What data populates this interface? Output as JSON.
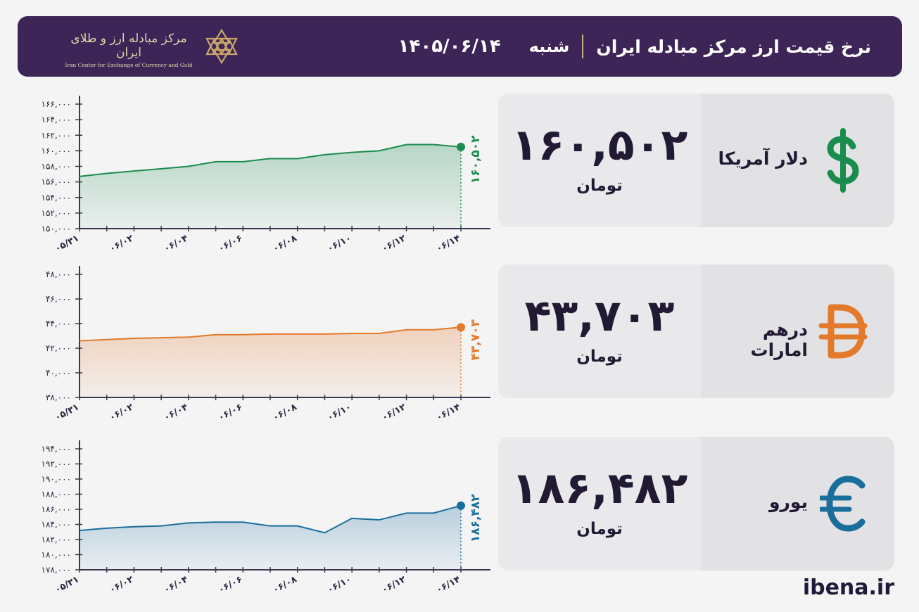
{
  "header": {
    "title": "نرخ قیمت ارز مرکز مبادله ایران",
    "day": "شنبه",
    "date": "۱۴۰۵/۰۶/۱۴",
    "logo_text_fa": "مرکز مبادله ارز و طلای ایران",
    "logo_text_en": "Iran Center for Exchange of Currency and Gold"
  },
  "footer": {
    "site": "ibena.ir"
  },
  "cards": [
    {
      "name": "دلار آمریکا",
      "value": "۱۶۰,۵۰۲",
      "unit": "تومان",
      "icon": "dollar-sign-icon",
      "color": "#1a8c4e"
    },
    {
      "name": "درهم امارات",
      "value": "۴۳,۷۰۳",
      "unit": "تومان",
      "icon": "dirham-sign-icon",
      "color": "#e3792b"
    },
    {
      "name": "یورو",
      "value": "۱۸۶,۴۸۲",
      "unit": "تومان",
      "icon": "euro-sign-icon",
      "color": "#1a6e9c"
    }
  ],
  "chart_data": [
    {
      "type": "area",
      "series": [
        {
          "values": [
            156700,
            157100,
            157400,
            157700,
            158000,
            158600,
            158600,
            159000,
            159000,
            159500,
            159800,
            160000,
            160800,
            160800,
            160502
          ]
        }
      ],
      "x": [
        "۰۵/۳۱",
        "۰۶/۰۱",
        "۰۶/۰۲",
        "۰۶/۰۳",
        "۰۶/۰۴",
        "۰۶/۰۵",
        "۰۶/۰۶",
        "۰۶/۰۷",
        "۰۶/۰۸",
        "۰۶/۰۹",
        "۰۶/۱۰",
        "۰۶/۱۱",
        "۰۶/۱۲",
        "۰۶/۱۳",
        "۰۶/۱۴"
      ],
      "x_tick_labels": [
        "۰۵/۳۱",
        "۰۶/۰۲",
        "۰۶/۰۴",
        "۰۶/۰۶",
        "۰۶/۰۸",
        "۰۶/۱۰",
        "۰۶/۱۲",
        "۰۶/۱۴"
      ],
      "y_ticks": [
        150000,
        152000,
        154000,
        156000,
        158000,
        160000,
        162000,
        164000,
        166000
      ],
      "y_tick_labels": [
        "۱۵۰,۰۰۰",
        "۱۵۲,۰۰۰",
        "۱۵۴,۰۰۰",
        "۱۵۶,۰۰۰",
        "۱۵۸,۰۰۰",
        "۱۶۰,۰۰۰",
        "۱۶۲,۰۰۰",
        "۱۶۴,۰۰۰",
        "۱۶۶,۰۰۰"
      ],
      "ylim": [
        150000,
        166000
      ],
      "last_label": "۱۶۰,۵۰۲",
      "color": "#1a8c4e"
    },
    {
      "type": "area",
      "series": [
        {
          "values": [
            42600,
            42700,
            42800,
            42850,
            42900,
            43100,
            43100,
            43150,
            43150,
            43150,
            43200,
            43200,
            43500,
            43500,
            43703
          ]
        }
      ],
      "x": [
        "۰۵/۳۱",
        "۰۶/۰۱",
        "۰۶/۰۲",
        "۰۶/۰۳",
        "۰۶/۰۴",
        "۰۶/۰۵",
        "۰۶/۰۶",
        "۰۶/۰۷",
        "۰۶/۰۸",
        "۰۶/۰۹",
        "۰۶/۱۰",
        "۰۶/۱۱",
        "۰۶/۱۲",
        "۰۶/۱۳",
        "۰۶/۱۴"
      ],
      "x_tick_labels": [
        "۰۵/۳۱",
        "۰۶/۰۲",
        "۰۶/۰۴",
        "۰۶/۰۶",
        "۰۶/۰۸",
        "۰۶/۱۰",
        "۰۶/۱۲",
        "۰۶/۱۴"
      ],
      "y_ticks": [
        38000,
        40000,
        42000,
        44000,
        46000,
        48000
      ],
      "y_tick_labels": [
        "۳۸,۰۰۰",
        "۴۰,۰۰۰",
        "۴۲,۰۰۰",
        "۴۴,۰۰۰",
        "۴۶,۰۰۰",
        "۴۸,۰۰۰"
      ],
      "ylim": [
        38000,
        48000
      ],
      "last_label": "۴۳,۷۰۳",
      "color": "#e3792b"
    },
    {
      "type": "area",
      "series": [
        {
          "values": [
            183200,
            183500,
            183700,
            183800,
            184200,
            184300,
            184300,
            183800,
            183800,
            182900,
            184800,
            184600,
            185500,
            185500,
            186482
          ]
        }
      ],
      "x": [
        "۰۵/۳۱",
        "۰۶/۰۱",
        "۰۶/۰۲",
        "۰۶/۰۳",
        "۰۶/۰۴",
        "۰۶/۰۵",
        "۰۶/۰۶",
        "۰۶/۰۷",
        "۰۶/۰۸",
        "۰۶/۰۹",
        "۰۶/۱۰",
        "۰۶/۱۱",
        "۰۶/۱۲",
        "۰۶/۱۳",
        "۰۶/۱۴"
      ],
      "x_tick_labels": [
        "۰۵/۳۱",
        "۰۶/۰۲",
        "۰۶/۰۴",
        "۰۶/۰۶",
        "۰۶/۰۸",
        "۰۶/۱۰",
        "۰۶/۱۲",
        "۰۶/۱۴"
      ],
      "y_ticks": [
        178000,
        180000,
        182000,
        184000,
        186000,
        188000,
        190000,
        192000,
        194000
      ],
      "y_tick_labels": [
        "۱۷۸,۰۰۰",
        "۱۸۰,۰۰۰",
        "۱۸۲,۰۰۰",
        "۱۸۴,۰۰۰",
        "۱۸۶,۰۰۰",
        "۱۸۸,۰۰۰",
        "۱۹۰,۰۰۰",
        "۱۹۲,۰۰۰",
        "۱۹۴,۰۰۰"
      ],
      "ylim": [
        178000,
        194000
      ],
      "last_label": "۱۸۶,۴۸۲",
      "color": "#1a6e9c"
    }
  ]
}
